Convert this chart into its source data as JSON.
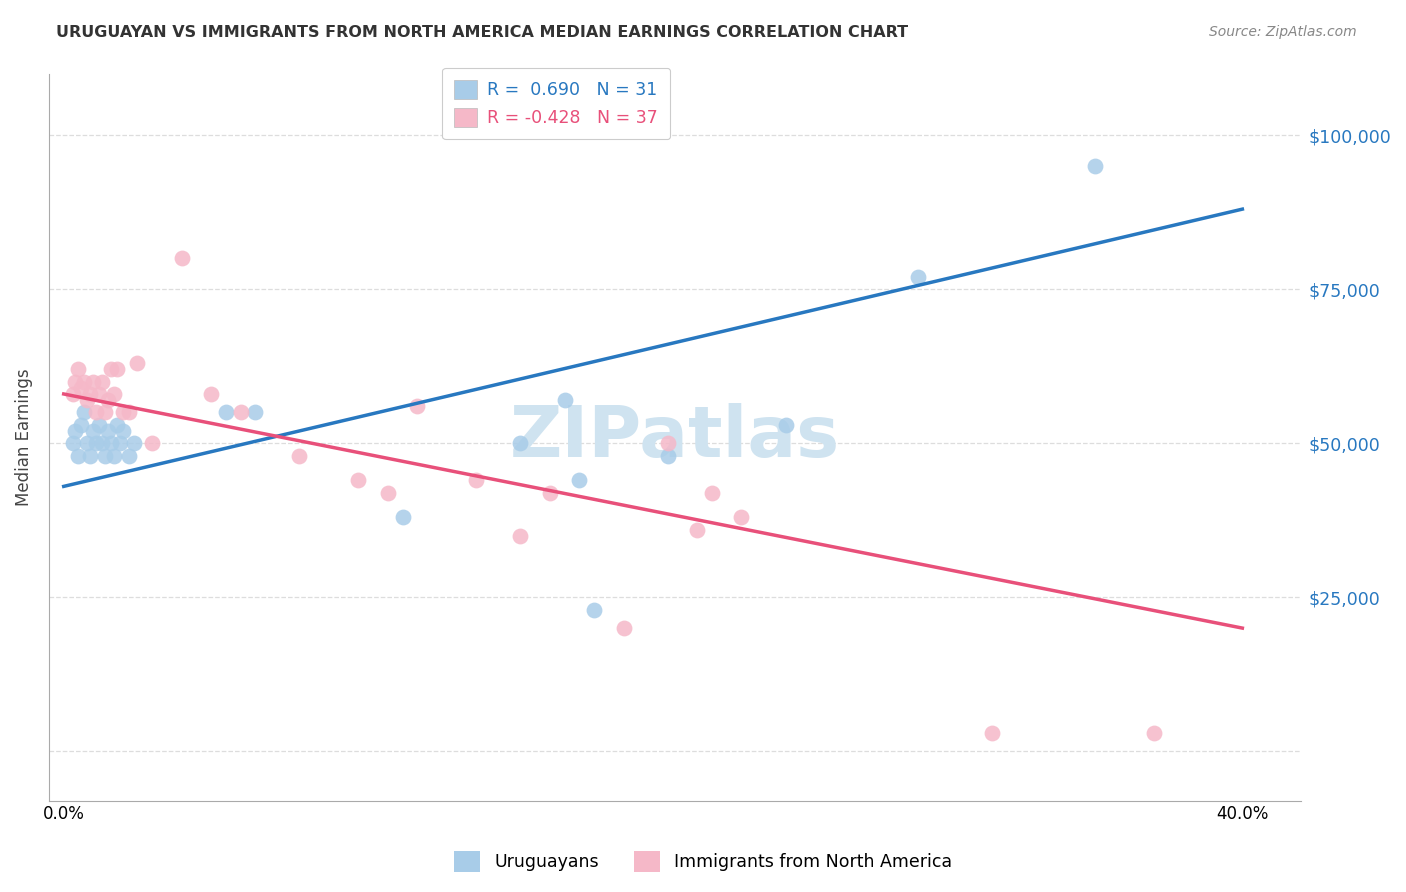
{
  "title": "URUGUAYAN VS IMMIGRANTS FROM NORTH AMERICA MEDIAN EARNINGS CORRELATION CHART",
  "source": "Source: ZipAtlas.com",
  "ylabel": "Median Earnings",
  "blue_color": "#a8cce8",
  "pink_color": "#f5b8c8",
  "blue_line_color": "#2878c0",
  "pink_line_color": "#e8507a",
  "blue_text_color": "#2878c0",
  "pink_text_color": "#e8507a",
  "R_blue_text": "R =  0.690",
  "N_blue_text": "N = 31",
  "R_pink_text": "R = -0.428",
  "N_pink_text": "N = 37",
  "watermark_color": "#cfe3f0",
  "blue_line_y0": 43000,
  "blue_line_y1": 88000,
  "pink_line_y0": 58000,
  "pink_line_y1": 20000,
  "uru_x": [
    0.003,
    0.004,
    0.005,
    0.006,
    0.007,
    0.008,
    0.009,
    0.01,
    0.011,
    0.012,
    0.013,
    0.014,
    0.015,
    0.016,
    0.017,
    0.018,
    0.019,
    0.02,
    0.022,
    0.024,
    0.055,
    0.065,
    0.115,
    0.155,
    0.17,
    0.175,
    0.18,
    0.205,
    0.245,
    0.29,
    0.35
  ],
  "uru_y": [
    50000,
    52000,
    48000,
    53000,
    55000,
    50000,
    48000,
    52000,
    50000,
    53000,
    50000,
    48000,
    52000,
    50000,
    48000,
    53000,
    50000,
    52000,
    48000,
    50000,
    55000,
    55000,
    38000,
    50000,
    57000,
    44000,
    23000,
    48000,
    53000,
    77000,
    95000
  ],
  "imm_x": [
    0.003,
    0.004,
    0.005,
    0.006,
    0.007,
    0.008,
    0.009,
    0.01,
    0.011,
    0.012,
    0.013,
    0.014,
    0.015,
    0.016,
    0.017,
    0.018,
    0.02,
    0.022,
    0.025,
    0.03,
    0.04,
    0.05,
    0.06,
    0.08,
    0.1,
    0.11,
    0.12,
    0.14,
    0.155,
    0.165,
    0.19,
    0.205,
    0.215,
    0.22,
    0.23,
    0.315,
    0.37
  ],
  "imm_y": [
    58000,
    60000,
    62000,
    59000,
    60000,
    57000,
    58000,
    60000,
    55000,
    58000,
    60000,
    55000,
    57000,
    62000,
    58000,
    62000,
    55000,
    55000,
    63000,
    50000,
    80000,
    58000,
    55000,
    48000,
    44000,
    42000,
    56000,
    44000,
    35000,
    42000,
    20000,
    50000,
    36000,
    42000,
    38000,
    3000,
    3000
  ],
  "yticks": [
    0,
    25000,
    50000,
    75000,
    100000
  ],
  "ytick_right_labels": [
    "",
    "$25,000",
    "$50,000",
    "$75,000",
    "$100,000"
  ],
  "xlim_low": -0.005,
  "xlim_high": 0.42,
  "ylim_low": -8000,
  "ylim_high": 110000,
  "grid_color": "#dddddd",
  "spine_color": "#aaaaaa"
}
